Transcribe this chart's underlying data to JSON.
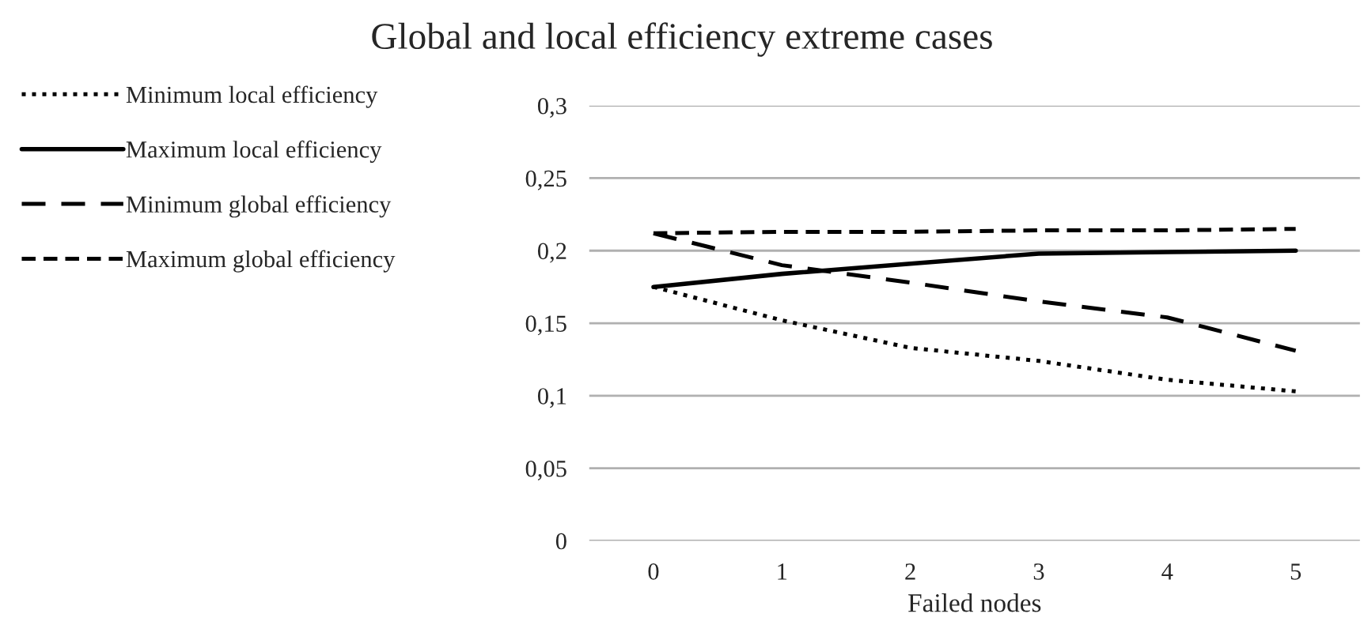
{
  "chart_data": {
    "type": "line",
    "title": "Global and local efficiency extreme cases",
    "xlabel": "Failed nodes",
    "categories": [
      "0",
      "1",
      "2",
      "3",
      "4",
      "5"
    ],
    "series": [
      {
        "name": "Minimum local efficiency",
        "color": "#000000",
        "line_style": "dotted",
        "values": [
          0.175,
          0.152,
          0.133,
          0.124,
          0.111,
          0.103
        ]
      },
      {
        "name": "Maximum local efficiency",
        "color": "#000000",
        "line_style": "solid",
        "values": [
          0.175,
          0.184,
          0.191,
          0.198,
          0.199,
          0.2
        ]
      },
      {
        "name": "Minimum global efficiency",
        "color": "#000000",
        "line_style": "dashed",
        "values": [
          0.212,
          0.19,
          0.178,
          0.165,
          0.154,
          0.131
        ]
      },
      {
        "name": "Maximum global efficiency",
        "color": "#000000",
        "line_style": "densely dashed",
        "values": [
          0.212,
          0.213,
          0.213,
          0.214,
          0.214,
          0.215
        ]
      }
    ],
    "ylim": [
      0,
      0.3
    ],
    "yticks": [
      {
        "value": 0,
        "label": "0"
      },
      {
        "value": 0.05,
        "label": "0,05"
      },
      {
        "value": 0.1,
        "label": "0,1"
      },
      {
        "value": 0.15,
        "label": "0,15"
      },
      {
        "value": 0.2,
        "label": "0,2"
      },
      {
        "value": 0.25,
        "label": "0,25"
      },
      {
        "value": 0.3,
        "label": "0,3"
      }
    ],
    "grid": "y",
    "legend": "left",
    "marker": "none"
  }
}
